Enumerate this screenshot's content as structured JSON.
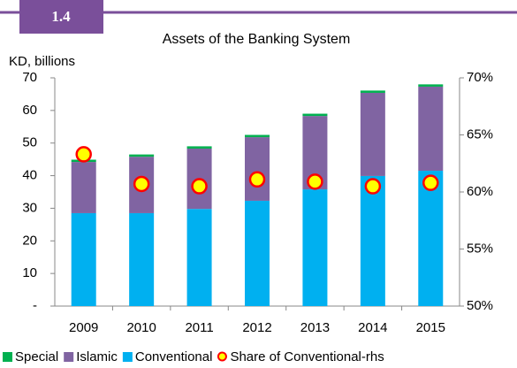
{
  "badge": "1.4",
  "chart_data": {
    "type": "bar",
    "stacked": true,
    "title": "Assets of the Banking System",
    "y_label": "KD, billions",
    "categories": [
      "2009",
      "2010",
      "2011",
      "2012",
      "2013",
      "2014",
      "2015"
    ],
    "series": [
      {
        "name": "Special",
        "color": "#00b050",
        "values": [
          0.7,
          0.7,
          0.7,
          0.7,
          0.7,
          0.7,
          0.7
        ]
      },
      {
        "name": "Islamic",
        "color": "#8064a2",
        "values": [
          15.7,
          17.3,
          18.5,
          19.5,
          22.5,
          25.5,
          25.8
        ]
      },
      {
        "name": "Conventional",
        "color": "#00b0f0",
        "values": [
          28.5,
          28.5,
          29.8,
          32.3,
          35.8,
          39.9,
          41.5
        ]
      },
      {
        "name": "Share of Conventional-rhs",
        "type": "scatter",
        "axis": "y2",
        "color": "#ffff00",
        "edge_color": "#ff0000",
        "values": [
          63.3,
          60.7,
          60.5,
          61.1,
          60.9,
          60.5,
          60.8
        ]
      }
    ],
    "ylim": [
      0,
      70
    ],
    "yticks": [
      {
        "value": 0,
        "label": "-"
      },
      10,
      20,
      30,
      40,
      50,
      60,
      70
    ],
    "y2lim": [
      50,
      70
    ],
    "y2ticks": [
      {
        "value": 50,
        "label": "50%"
      },
      {
        "value": 55,
        "label": "55%"
      },
      {
        "value": 60,
        "label": "60%"
      },
      {
        "value": 65,
        "label": "65%"
      },
      {
        "value": 70,
        "label": "70%"
      }
    ],
    "legend": "bottom"
  }
}
